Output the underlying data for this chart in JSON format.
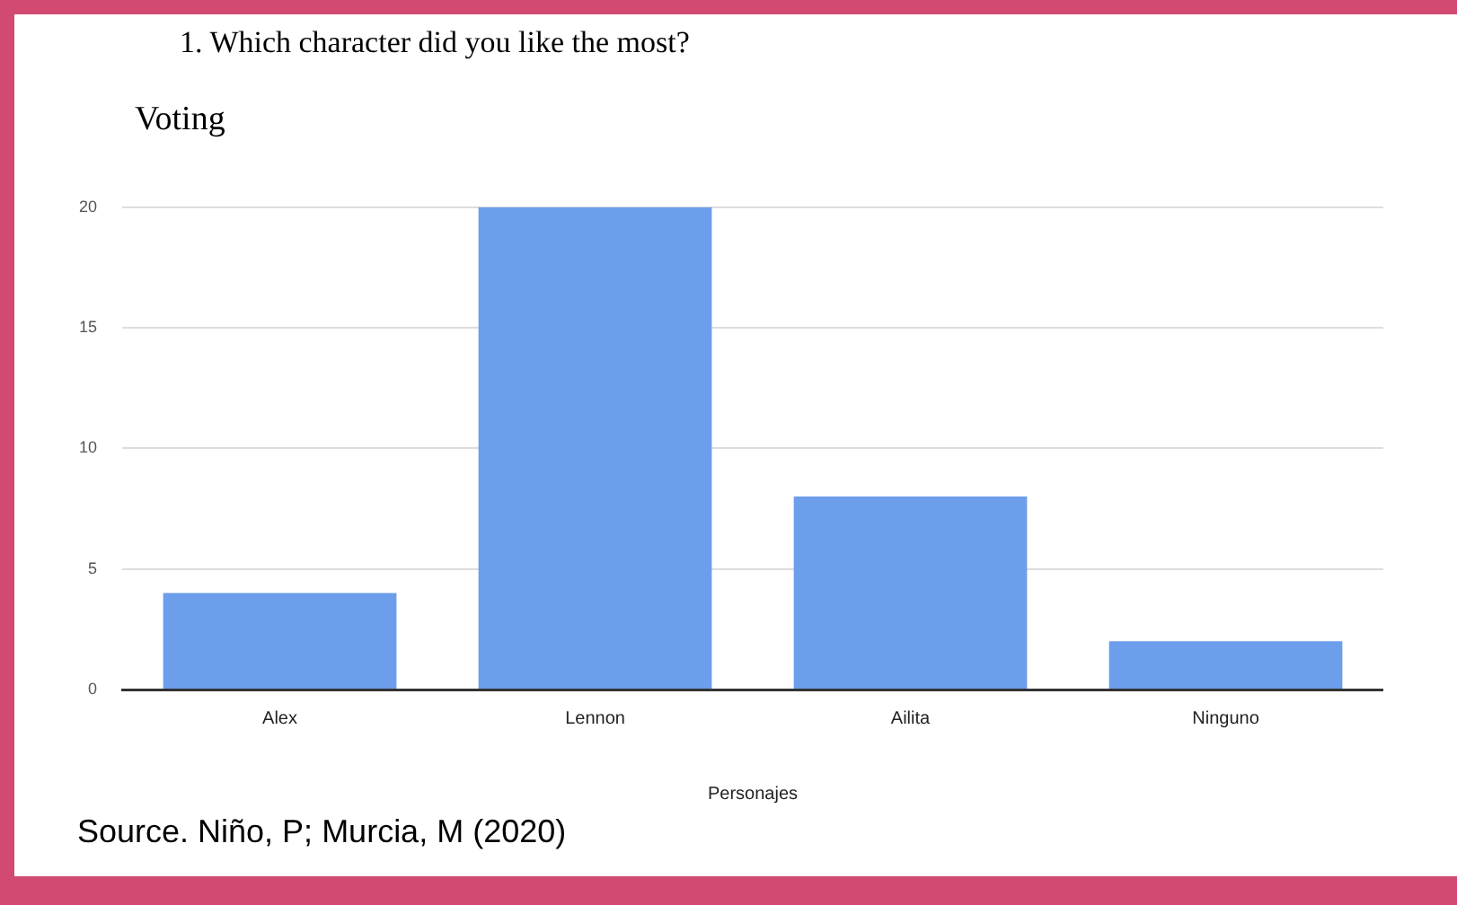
{
  "chart_data": {
    "type": "bar",
    "title": "1. Which character did you like the most?",
    "subtitle": "Voting",
    "xlabel": "Personajes",
    "categories": [
      "Alex",
      "Lennon",
      "Ailita",
      "Ninguno"
    ],
    "values": [
      4,
      20,
      8,
      2
    ],
    "color": "#6d9eeb",
    "ylim": [
      0,
      20
    ],
    "yticks": [
      0,
      5,
      10,
      15,
      20
    ],
    "grid": "y",
    "legend": false,
    "annotations": [
      "Source. Niño, P; Murcia, M (2020)"
    ]
  }
}
